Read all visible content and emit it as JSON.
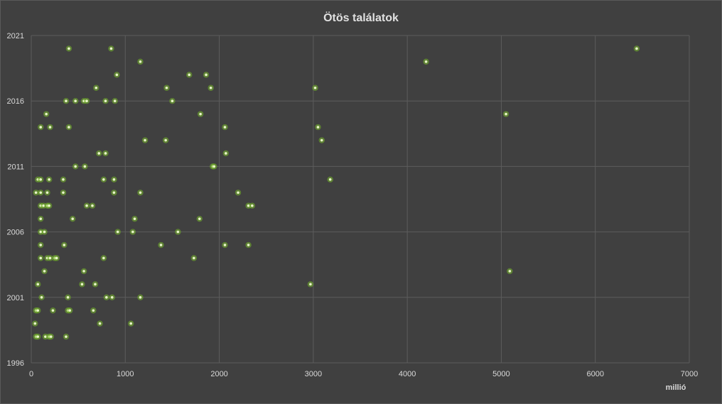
{
  "chart_data": {
    "type": "scatter",
    "title": "Ötös találatok",
    "xlabel": "millió",
    "ylabel": "",
    "xlim": [
      0,
      7000
    ],
    "ylim": [
      1996,
      2021
    ],
    "x_ticks": [
      "0",
      "1000",
      "2000",
      "3000",
      "4000",
      "5000",
      "6000",
      "7000"
    ],
    "y_ticks": [
      "1996",
      "2001",
      "2006",
      "2011",
      "2016",
      "2021"
    ],
    "grid": true,
    "legend": "none",
    "marker_color": "#76b82a",
    "background": "#404040",
    "points": [
      {
        "x": 400,
        "y": 2020
      },
      {
        "x": 850,
        "y": 2020
      },
      {
        "x": 6440,
        "y": 2020
      },
      {
        "x": 1160,
        "y": 2019
      },
      {
        "x": 4200,
        "y": 2019
      },
      {
        "x": 910,
        "y": 2018
      },
      {
        "x": 1680,
        "y": 2018
      },
      {
        "x": 1860,
        "y": 2018
      },
      {
        "x": 690,
        "y": 2017
      },
      {
        "x": 1440,
        "y": 2017
      },
      {
        "x": 1910,
        "y": 2017
      },
      {
        "x": 3020,
        "y": 2017
      },
      {
        "x": 370,
        "y": 2016
      },
      {
        "x": 470,
        "y": 2016
      },
      {
        "x": 560,
        "y": 2016
      },
      {
        "x": 590,
        "y": 2016
      },
      {
        "x": 790,
        "y": 2016
      },
      {
        "x": 890,
        "y": 2016
      },
      {
        "x": 1500,
        "y": 2016
      },
      {
        "x": 160,
        "y": 2015
      },
      {
        "x": 1800,
        "y": 2015
      },
      {
        "x": 5050,
        "y": 2015
      },
      {
        "x": 100,
        "y": 2014
      },
      {
        "x": 200,
        "y": 2014
      },
      {
        "x": 400,
        "y": 2014
      },
      {
        "x": 2060,
        "y": 2014
      },
      {
        "x": 3050,
        "y": 2014
      },
      {
        "x": 1210,
        "y": 2013
      },
      {
        "x": 1430,
        "y": 2013
      },
      {
        "x": 3090,
        "y": 2013
      },
      {
        "x": 720,
        "y": 2012
      },
      {
        "x": 790,
        "y": 2012
      },
      {
        "x": 2070,
        "y": 2012
      },
      {
        "x": 470,
        "y": 2011
      },
      {
        "x": 570,
        "y": 2011
      },
      {
        "x": 1930,
        "y": 2011
      },
      {
        "x": 1945,
        "y": 2011
      },
      {
        "x": 70,
        "y": 2010
      },
      {
        "x": 100,
        "y": 2010
      },
      {
        "x": 190,
        "y": 2010
      },
      {
        "x": 340,
        "y": 2010
      },
      {
        "x": 770,
        "y": 2010
      },
      {
        "x": 880,
        "y": 2010
      },
      {
        "x": 3180,
        "y": 2010
      },
      {
        "x": 50,
        "y": 2009
      },
      {
        "x": 100,
        "y": 2009
      },
      {
        "x": 170,
        "y": 2009
      },
      {
        "x": 340,
        "y": 2009
      },
      {
        "x": 880,
        "y": 2009
      },
      {
        "x": 1160,
        "y": 2009
      },
      {
        "x": 2200,
        "y": 2009
      },
      {
        "x": 100,
        "y": 2008
      },
      {
        "x": 130,
        "y": 2008
      },
      {
        "x": 170,
        "y": 2008
      },
      {
        "x": 190,
        "y": 2008
      },
      {
        "x": 590,
        "y": 2008
      },
      {
        "x": 650,
        "y": 2008
      },
      {
        "x": 2310,
        "y": 2008
      },
      {
        "x": 2350,
        "y": 2008
      },
      {
        "x": 100,
        "y": 2007
      },
      {
        "x": 440,
        "y": 2007
      },
      {
        "x": 1100,
        "y": 2007
      },
      {
        "x": 1790,
        "y": 2007
      },
      {
        "x": 100,
        "y": 2006
      },
      {
        "x": 140,
        "y": 2006
      },
      {
        "x": 920,
        "y": 2006
      },
      {
        "x": 1080,
        "y": 2006
      },
      {
        "x": 1560,
        "y": 2006
      },
      {
        "x": 100,
        "y": 2005
      },
      {
        "x": 350,
        "y": 2005
      },
      {
        "x": 1380,
        "y": 2005
      },
      {
        "x": 2060,
        "y": 2005
      },
      {
        "x": 2310,
        "y": 2005
      },
      {
        "x": 100,
        "y": 2004
      },
      {
        "x": 170,
        "y": 2004
      },
      {
        "x": 200,
        "y": 2004
      },
      {
        "x": 250,
        "y": 2004
      },
      {
        "x": 270,
        "y": 2004
      },
      {
        "x": 770,
        "y": 2004
      },
      {
        "x": 1730,
        "y": 2004
      },
      {
        "x": 140,
        "y": 2003
      },
      {
        "x": 560,
        "y": 2003
      },
      {
        "x": 5090,
        "y": 2003
      },
      {
        "x": 70,
        "y": 2002
      },
      {
        "x": 540,
        "y": 2002
      },
      {
        "x": 680,
        "y": 2002
      },
      {
        "x": 2970,
        "y": 2002
      },
      {
        "x": 110,
        "y": 2001
      },
      {
        "x": 390,
        "y": 2001
      },
      {
        "x": 800,
        "y": 2001
      },
      {
        "x": 860,
        "y": 2001
      },
      {
        "x": 1160,
        "y": 2001
      },
      {
        "x": 50,
        "y": 2000
      },
      {
        "x": 70,
        "y": 2000
      },
      {
        "x": 230,
        "y": 2000
      },
      {
        "x": 390,
        "y": 2000
      },
      {
        "x": 410,
        "y": 2000
      },
      {
        "x": 660,
        "y": 2000
      },
      {
        "x": 40,
        "y": 1999
      },
      {
        "x": 730,
        "y": 1999
      },
      {
        "x": 1060,
        "y": 1999
      },
      {
        "x": 50,
        "y": 1998
      },
      {
        "x": 70,
        "y": 1998
      },
      {
        "x": 150,
        "y": 1998
      },
      {
        "x": 190,
        "y": 1998
      },
      {
        "x": 210,
        "y": 1998
      },
      {
        "x": 370,
        "y": 1998
      }
    ]
  }
}
